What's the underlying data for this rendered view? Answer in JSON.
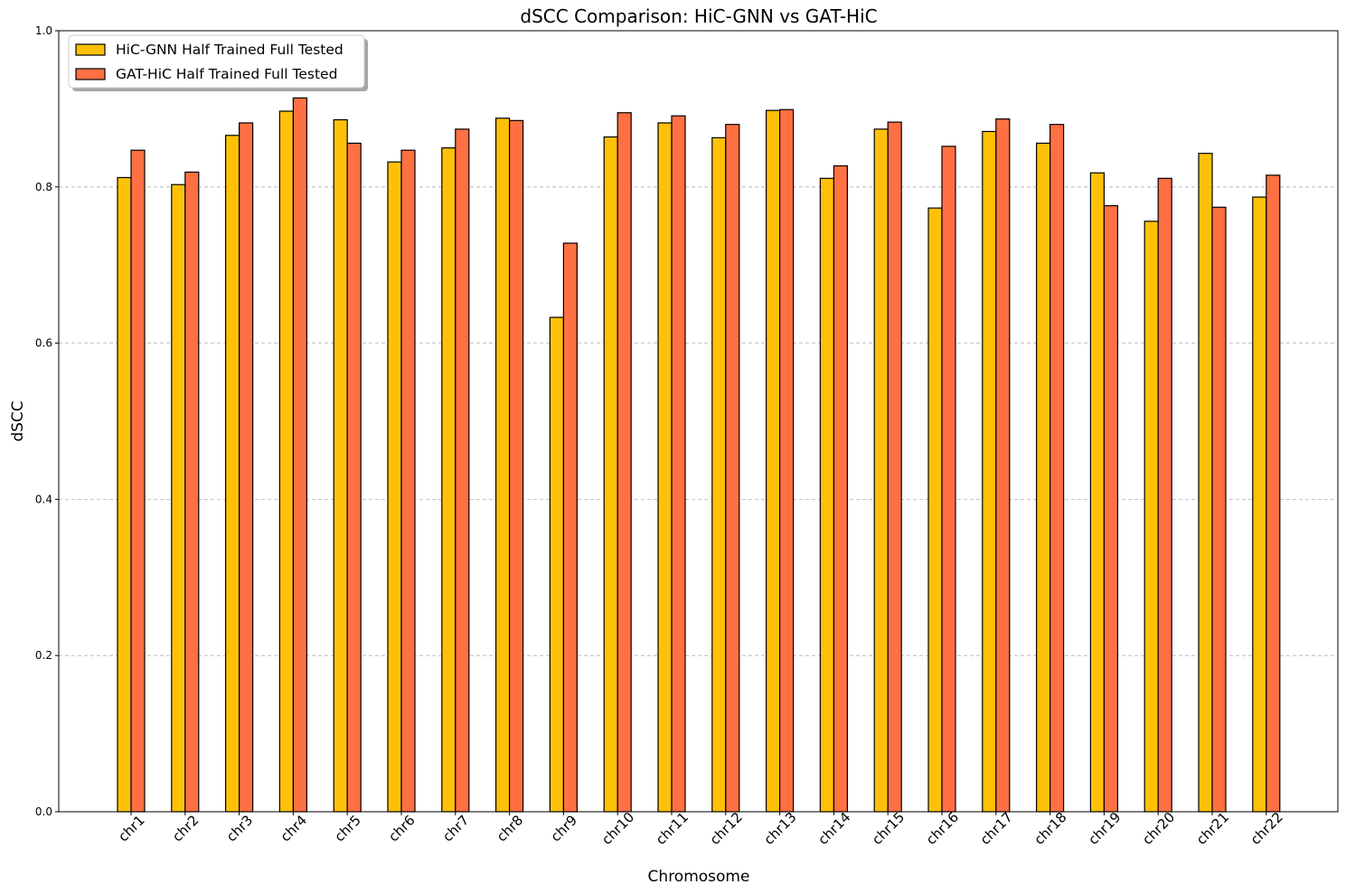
{
  "chart_data": {
    "type": "bar",
    "title": "dSCC Comparison: HiC-GNN vs GAT-HiC",
    "xlabel": "Chromosome",
    "ylabel": "dSCC",
    "ylim": [
      0,
      1.0
    ],
    "yticks": [
      "0.0",
      "0.2",
      "0.4",
      "0.6",
      "0.8",
      "1.0"
    ],
    "grid": "y-dashed",
    "legend_position": "top-left",
    "categories": [
      "chr1",
      "chr2",
      "chr3",
      "chr4",
      "chr5",
      "chr6",
      "chr7",
      "chr8",
      "chr9",
      "chr10",
      "chr11",
      "chr12",
      "chr13",
      "chr14",
      "chr15",
      "chr16",
      "chr17",
      "chr18",
      "chr19",
      "chr20",
      "chr21",
      "chr22"
    ],
    "series": [
      {
        "name": "HiC-GNN Half Trained Full Tested",
        "color": "#FFC107",
        "values": [
          0.812,
          0.803,
          0.866,
          0.897,
          0.886,
          0.832,
          0.85,
          0.888,
          0.633,
          0.864,
          0.882,
          0.863,
          0.898,
          0.811,
          0.874,
          0.773,
          0.871,
          0.856,
          0.818,
          0.756,
          0.843,
          0.787
        ]
      },
      {
        "name": "GAT-HiC Half Trained Full Tested",
        "color": "#FF7043",
        "values": [
          0.847,
          0.819,
          0.882,
          0.914,
          0.856,
          0.847,
          0.874,
          0.885,
          0.728,
          0.895,
          0.891,
          0.88,
          0.899,
          0.827,
          0.883,
          0.852,
          0.887,
          0.88,
          0.776,
          0.811,
          0.774,
          0.815
        ]
      }
    ]
  }
}
